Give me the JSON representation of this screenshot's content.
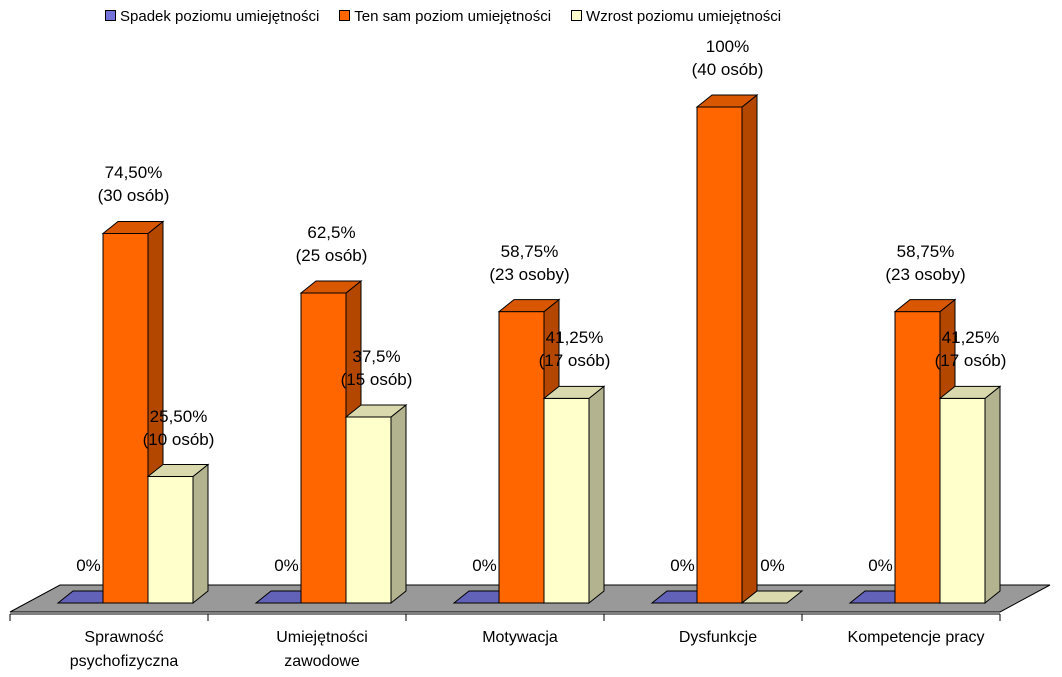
{
  "chart_data": {
    "type": "bar3d",
    "categories": [
      "Sprawność psychofizyczna",
      "Umiejętności zawodowe",
      "Motywacja",
      "Dysfunkcje",
      "Kompetencje pracy"
    ],
    "series": [
      {
        "name": "Spadek poziomu umiejętności",
        "color": "#7373d9",
        "values": [
          0,
          0,
          0,
          0,
          0
        ],
        "value_labels": [
          "0%",
          "0%",
          "0%",
          "0%",
          "0%"
        ]
      },
      {
        "name": "Ten sam poziom umiejętności",
        "color": "#ff6600",
        "values": [
          74.5,
          62.5,
          58.75,
          100,
          58.75
        ],
        "value_labels": [
          "74,50%\n(30 osób)",
          "62,5%\n(25 osób)",
          "58,75%\n(23 osoby)",
          "100%\n(40 osób)",
          "58,75%\n(23 osoby)"
        ]
      },
      {
        "name": "Wzrost poziomu umiejętności",
        "color": "#ffffcc",
        "values": [
          25.5,
          37.5,
          41.25,
          0,
          41.25
        ],
        "value_labels": [
          "25,50%\n(10 osób)",
          "37,5%\n(15 osób)",
          "41,25%\n(17 osób)",
          "0%",
          "41,25%\n(17 osób)"
        ]
      }
    ],
    "legend": "top"
  }
}
